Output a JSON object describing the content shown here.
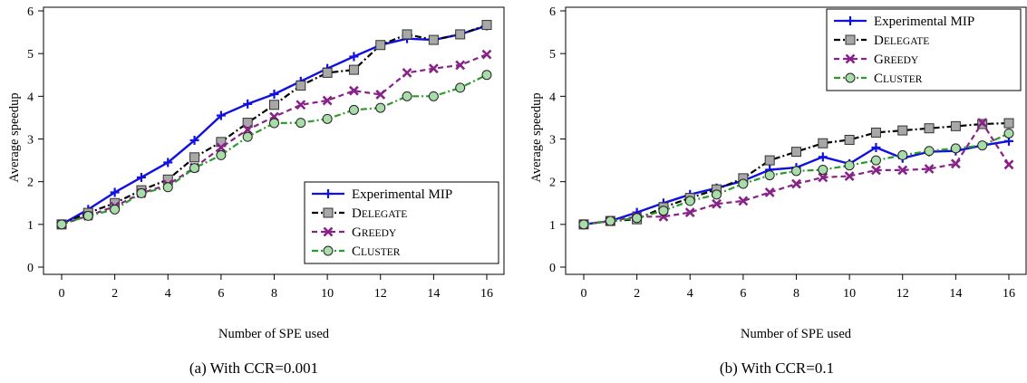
{
  "chart_data": [
    {
      "type": "line",
      "caption": "(a)  With CCR=0.001",
      "xlabel": "Number of SPE used",
      "ylabel": "Average speedup",
      "xlim": [
        0,
        16
      ],
      "ylim": [
        0,
        6
      ],
      "xticks": [
        0,
        2,
        4,
        6,
        8,
        10,
        12,
        14,
        16
      ],
      "yticks": [
        0,
        1,
        2,
        3,
        4,
        5,
        6
      ],
      "legend_position": "bottom-right",
      "x": [
        0,
        1,
        2,
        3,
        4,
        5,
        6,
        7,
        8,
        9,
        10,
        11,
        12,
        13,
        14,
        15,
        16
      ],
      "series": [
        {
          "name": "Experimental MIP",
          "name_big": "",
          "name_small": "",
          "color": "#1010e0",
          "dash": "",
          "marker": "plus",
          "values": [
            1.0,
            1.35,
            1.75,
            2.1,
            2.45,
            2.97,
            3.55,
            3.82,
            4.05,
            4.35,
            4.65,
            4.93,
            5.2,
            5.35,
            5.32,
            5.45,
            5.65
          ]
        },
        {
          "name": "DELEGATE",
          "name_big": "D",
          "name_small": "ELEGATE",
          "color": "#000000",
          "dash": "7,3,2,3",
          "marker": "square",
          "values": [
            1.0,
            1.27,
            1.5,
            1.8,
            2.05,
            2.57,
            2.93,
            3.38,
            3.8,
            4.25,
            4.55,
            4.62,
            5.2,
            5.45,
            5.32,
            5.45,
            5.67
          ]
        },
        {
          "name": "GREEDY",
          "name_big": "G",
          "name_small": "REEDY",
          "color": "#882288",
          "dash": "6,4",
          "marker": "x",
          "values": [
            1.0,
            1.2,
            1.42,
            1.73,
            1.93,
            2.33,
            2.8,
            3.22,
            3.52,
            3.8,
            3.9,
            4.13,
            4.04,
            4.55,
            4.65,
            4.73,
            4.98
          ]
        },
        {
          "name": "CLUSTER",
          "name_big": "C",
          "name_small": "LUSTER",
          "color": "#2a9a2a",
          "dash": "7,3,2,3",
          "marker": "circle",
          "values": [
            1.0,
            1.2,
            1.35,
            1.73,
            1.87,
            2.32,
            2.62,
            3.05,
            3.37,
            3.38,
            3.47,
            3.68,
            3.73,
            4.0,
            4.0,
            4.2,
            4.5
          ]
        }
      ]
    },
    {
      "type": "line",
      "caption": "(b)  With CCR=0.1",
      "xlabel": "Number of SPE used",
      "ylabel": "Average speedup",
      "xlim": [
        0,
        16
      ],
      "ylim": [
        0,
        6
      ],
      "xticks": [
        0,
        2,
        4,
        6,
        8,
        10,
        12,
        14,
        16
      ],
      "yticks": [
        0,
        1,
        2,
        3,
        4,
        5,
        6
      ],
      "legend_position": "top-right",
      "x": [
        0,
        1,
        2,
        3,
        4,
        5,
        6,
        7,
        8,
        9,
        10,
        11,
        12,
        13,
        14,
        15,
        16
      ],
      "series": [
        {
          "name": "Experimental MIP",
          "name_big": "",
          "name_small": "",
          "color": "#1010e0",
          "dash": "",
          "marker": "plus",
          "values": [
            1.0,
            1.08,
            1.28,
            1.5,
            1.7,
            1.85,
            2.02,
            2.28,
            2.33,
            2.58,
            2.42,
            2.8,
            2.55,
            2.7,
            2.72,
            2.85,
            2.95
          ]
        },
        {
          "name": "DELEGATE",
          "name_big": "D",
          "name_small": "ELEGATE",
          "color": "#000000",
          "dash": "7,3,2,3",
          "marker": "square",
          "values": [
            1.0,
            1.08,
            1.12,
            1.4,
            1.62,
            1.82,
            2.08,
            2.5,
            2.7,
            2.9,
            2.98,
            3.15,
            3.2,
            3.25,
            3.3,
            3.35,
            3.37
          ]
        },
        {
          "name": "GREEDY",
          "name_big": "G",
          "name_small": "REEDY",
          "color": "#882288",
          "dash": "6,4",
          "marker": "x",
          "values": [
            1.0,
            1.08,
            1.18,
            1.18,
            1.28,
            1.48,
            1.55,
            1.75,
            1.95,
            2.1,
            2.13,
            2.27,
            2.27,
            2.3,
            2.42,
            3.38,
            2.4
          ]
        },
        {
          "name": "CLUSTER",
          "name_big": "C",
          "name_small": "LUSTER",
          "color": "#2a9a2a",
          "dash": "7,3,2,3",
          "marker": "circle",
          "values": [
            1.0,
            1.08,
            1.15,
            1.32,
            1.55,
            1.7,
            1.95,
            2.15,
            2.25,
            2.28,
            2.38,
            2.5,
            2.62,
            2.72,
            2.78,
            2.85,
            3.13
          ]
        }
      ]
    }
  ]
}
